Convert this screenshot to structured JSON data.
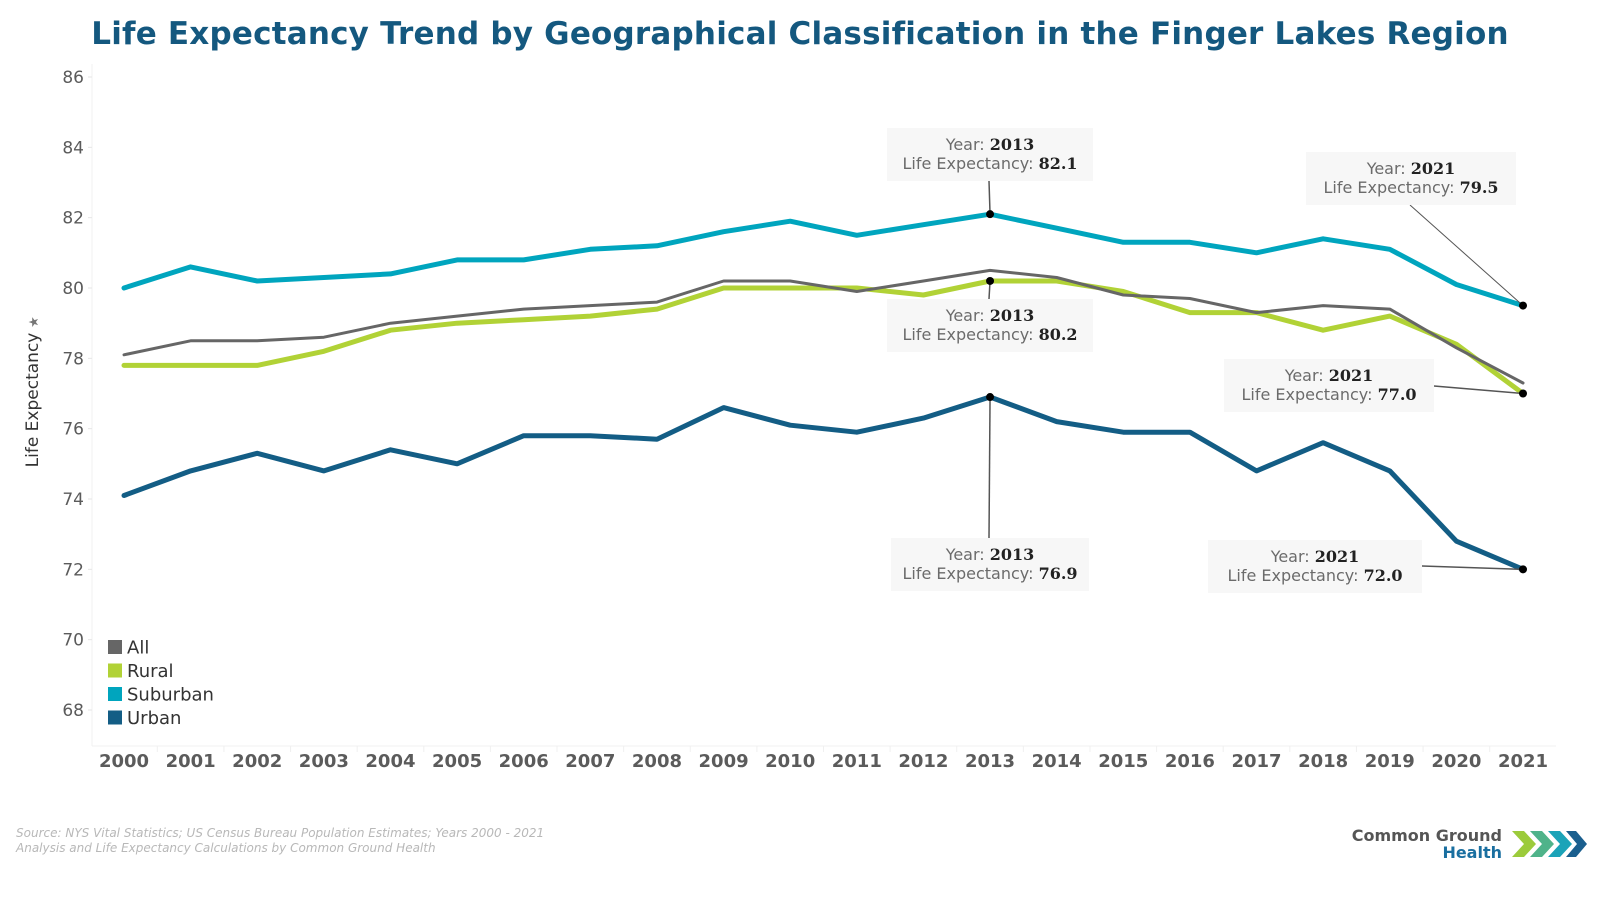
{
  "title": "Life Expectancy Trend by Geographical Classification in the Finger Lakes Region",
  "source_lines": [
    "Source: NYS Vital Statistics; US Census Bureau Population Estimates; Years 2000 - 2021",
    "Analysis and Life Expectancy Calculations by Common Ground Health"
  ],
  "logo": {
    "line1": "Common Ground",
    "line2": "Health",
    "icon": "chevrons-icon"
  },
  "chart_data": {
    "type": "line",
    "title": "Life Expectancy Trend by Geographical Classification in the Finger Lakes Region",
    "xlabel": "",
    "ylabel": "Life Expectancy",
    "ylabel_icon": "pin-icon",
    "ylim": [
      67,
      86
    ],
    "yticks": [
      68,
      70,
      72,
      74,
      76,
      78,
      80,
      82,
      84,
      86
    ],
    "grid": false,
    "legend_position": "bottom-left",
    "categories": [
      "2000",
      "2001",
      "2002",
      "2003",
      "2004",
      "2005",
      "2006",
      "2007",
      "2008",
      "2009",
      "2010",
      "2011",
      "2012",
      "2013",
      "2014",
      "2015",
      "2016",
      "2017",
      "2018",
      "2019",
      "2020",
      "2021"
    ],
    "series": [
      {
        "name": "All",
        "color": "#666666",
        "values": [
          78.1,
          78.5,
          78.5,
          78.6,
          79.0,
          79.2,
          79.4,
          79.5,
          79.6,
          80.2,
          80.2,
          79.9,
          80.2,
          80.5,
          80.3,
          79.8,
          79.7,
          79.3,
          79.5,
          79.4,
          78.3,
          77.3
        ]
      },
      {
        "name": "Rural",
        "color": "#b1d236",
        "values": [
          77.8,
          77.8,
          77.8,
          78.2,
          78.8,
          79.0,
          79.1,
          79.2,
          79.4,
          80.0,
          80.0,
          80.0,
          79.8,
          80.2,
          80.2,
          79.9,
          79.3,
          79.3,
          78.8,
          79.2,
          78.4,
          77.0
        ]
      },
      {
        "name": "Suburban",
        "color": "#00a5be",
        "values": [
          80.0,
          80.6,
          80.2,
          80.3,
          80.4,
          80.8,
          80.8,
          81.1,
          81.2,
          81.6,
          81.9,
          81.5,
          81.8,
          82.1,
          81.7,
          81.3,
          81.3,
          81.0,
          81.4,
          81.1,
          80.1,
          79.5
        ]
      },
      {
        "name": "Urban",
        "color": "#135d85",
        "values": [
          74.1,
          74.8,
          75.3,
          74.8,
          75.4,
          75.0,
          75.8,
          75.8,
          75.7,
          76.6,
          76.1,
          75.9,
          76.3,
          76.9,
          76.2,
          75.9,
          75.9,
          74.8,
          75.6,
          74.8,
          72.8,
          72.0
        ]
      }
    ],
    "annotations": [
      {
        "series": "Suburban",
        "year_label": "Year:",
        "year": "2013",
        "value_label": "Life Expectancy:",
        "value": "82.1"
      },
      {
        "series": "Rural",
        "year_label": "Year:",
        "year": "2013",
        "value_label": "Life Expectancy:",
        "value": "80.2"
      },
      {
        "series": "Urban",
        "year_label": "Year:",
        "year": "2013",
        "value_label": "Life Expectancy:",
        "value": "76.9"
      },
      {
        "series": "Suburban",
        "year_label": "Year:",
        "year": "2021",
        "value_label": "Life Expectancy:",
        "value": "79.5"
      },
      {
        "series": "Rural",
        "year_label": "Year:",
        "year": "2021",
        "value_label": "Life Expectancy:",
        "value": "77.0"
      },
      {
        "series": "Urban",
        "year_label": "Year:",
        "year": "2021",
        "value_label": "Life Expectancy:",
        "value": "72.0"
      }
    ]
  }
}
